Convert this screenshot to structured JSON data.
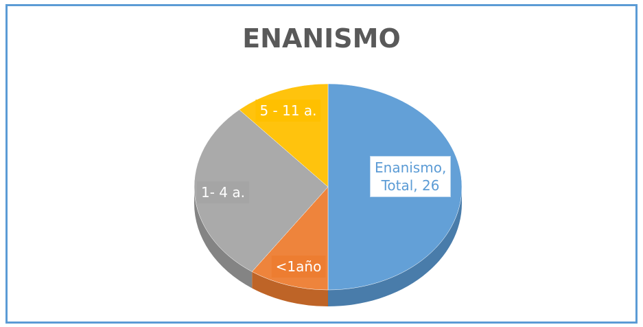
{
  "chart_data": {
    "type": "pie3d",
    "title": "ENANISMO",
    "series_name": "Enanismo",
    "values": [
      26,
      5,
      15,
      6
    ],
    "value_labels": [
      "Enanismo, Total, 26",
      "<1año",
      "1- 4 a.",
      "5 - 11 a."
    ],
    "colors": [
      "#5b9bd5",
      "#ed7d31",
      "#a5a5a5",
      "#ffc000"
    ]
  }
}
